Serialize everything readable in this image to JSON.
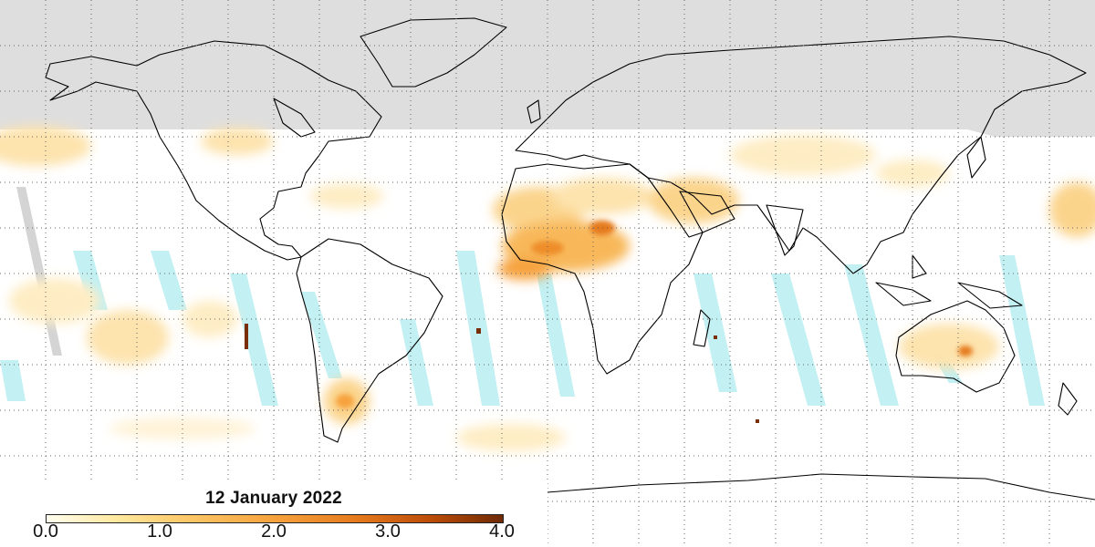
{
  "map": {
    "title": "12 January 2022",
    "colorbar": {
      "ticks": [
        "0.0",
        "1.0",
        "2.0",
        "3.0",
        "4.0"
      ],
      "range": [
        0.0,
        4.0
      ]
    },
    "colors": {
      "no_data": "#dedede",
      "land_outline": "#000000",
      "low_value": "#fffae0",
      "mid_value": "#f6a23c",
      "high_value": "#7a2e05",
      "swath_gap": "#bff0f2",
      "grid": "#555555"
    }
  }
}
